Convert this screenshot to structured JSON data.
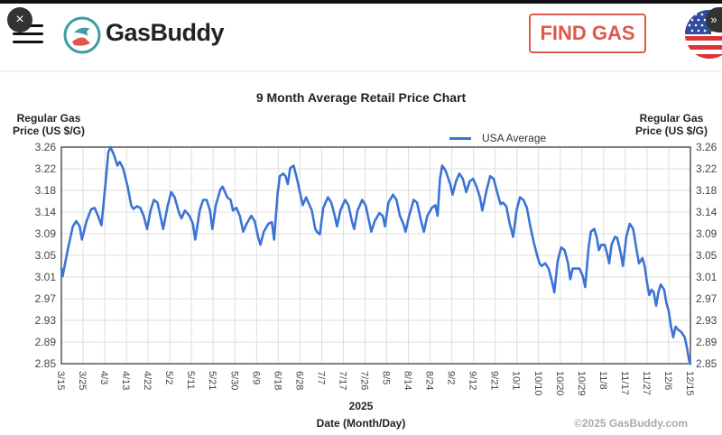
{
  "header": {
    "brand": "GasBuddy",
    "find_gas_label": "FIND GAS",
    "close_label": "×",
    "close_right_label": "»"
  },
  "chart_data": {
    "type": "line",
    "title": "9 Month Average Retail Price Chart",
    "ylabel_line1": "Regular Gas",
    "ylabel_line2": "Price (US $/G)",
    "xlabel_year": "2025",
    "xlabel": "Date (Month/Day)",
    "legend": "USA Average",
    "legend_position": "top-right",
    "grid": true,
    "ylim": [
      2.85,
      3.26
    ],
    "yticks": [
      "3.26",
      "3.22",
      "3.18",
      "3.14",
      "3.09",
      "3.05",
      "3.01",
      "2.97",
      "2.93",
      "2.89",
      "2.85"
    ],
    "xticks": [
      "3/15",
      "3/25",
      "4/3",
      "4/13",
      "4/22",
      "5/2",
      "5/11",
      "5/21",
      "5/30",
      "6/9",
      "6/18",
      "6/28",
      "7/7",
      "7/17",
      "7/26",
      "8/5",
      "8/14",
      "8/24",
      "9/2",
      "9/12",
      "9/21",
      "10/1",
      "10/10",
      "10/20",
      "10/29",
      "11/8",
      "11/17",
      "11/27",
      "12/6",
      "12/15"
    ],
    "x_days_range": [
      0,
      275
    ],
    "series": [
      {
        "name": "USA Average",
        "color": "#3b73d6",
        "points": [
          [
            0,
            3.03
          ],
          [
            0.5,
            3.015
          ],
          [
            3,
            3.07
          ],
          [
            5,
            3.11
          ],
          [
            6.5,
            3.12
          ],
          [
            8,
            3.11
          ],
          [
            9,
            3.085
          ],
          [
            11,
            3.12
          ],
          [
            13,
            3.142
          ],
          [
            14.5,
            3.145
          ],
          [
            16,
            3.13
          ],
          [
            17.5,
            3.112
          ],
          [
            19.5,
            3.2
          ],
          [
            20.5,
            3.25
          ],
          [
            21.5,
            3.26
          ],
          [
            23,
            3.245
          ],
          [
            24.5,
            3.225
          ],
          [
            25.5,
            3.232
          ],
          [
            27,
            3.22
          ],
          [
            29,
            3.185
          ],
          [
            30.5,
            3.15
          ],
          [
            31.5,
            3.143
          ],
          [
            33,
            3.148
          ],
          [
            34.5,
            3.145
          ],
          [
            36,
            3.13
          ],
          [
            37.5,
            3.105
          ],
          [
            39,
            3.14
          ],
          [
            40.5,
            3.16
          ],
          [
            42,
            3.155
          ],
          [
            43.5,
            3.125
          ],
          [
            44.5,
            3.105
          ],
          [
            46.5,
            3.15
          ],
          [
            48,
            3.175
          ],
          [
            49.5,
            3.165
          ],
          [
            51.5,
            3.135
          ],
          [
            52.5,
            3.125
          ],
          [
            54,
            3.14
          ],
          [
            56,
            3.13
          ],
          [
            57.5,
            3.115
          ],
          [
            58.5,
            3.085
          ],
          [
            60.5,
            3.14
          ],
          [
            62,
            3.16
          ],
          [
            63.5,
            3.16
          ],
          [
            65,
            3.14
          ],
          [
            66,
            3.105
          ],
          [
            67.5,
            3.15
          ],
          [
            69.5,
            3.18
          ],
          [
            70.5,
            3.185
          ],
          [
            72.5,
            3.165
          ],
          [
            74,
            3.16
          ],
          [
            75,
            3.14
          ],
          [
            76.5,
            3.145
          ],
          [
            78,
            3.13
          ],
          [
            79.5,
            3.1
          ],
          [
            81,
            3.115
          ],
          [
            83,
            3.13
          ],
          [
            84.5,
            3.12
          ],
          [
            86,
            3.09
          ],
          [
            87,
            3.075
          ],
          [
            88.5,
            3.1
          ],
          [
            90.5,
            3.115
          ],
          [
            92,
            3.118
          ],
          [
            93,
            3.085
          ],
          [
            94.5,
            3.17
          ],
          [
            95.5,
            3.205
          ],
          [
            97,
            3.21
          ],
          [
            98,
            3.205
          ],
          [
            99,
            3.19
          ],
          [
            100,
            3.22
          ],
          [
            101.5,
            3.225
          ],
          [
            103,
            3.2
          ],
          [
            104.5,
            3.17
          ],
          [
            105.5,
            3.15
          ],
          [
            107,
            3.165
          ],
          [
            108.5,
            3.15
          ],
          [
            109.5,
            3.14
          ],
          [
            111,
            3.105
          ],
          [
            112,
            3.098
          ],
          [
            113,
            3.095
          ],
          [
            114.5,
            3.145
          ],
          [
            116.5,
            3.165
          ],
          [
            118,
            3.155
          ],
          [
            119.5,
            3.13
          ],
          [
            120.5,
            3.11
          ],
          [
            122,
            3.14
          ],
          [
            124,
            3.16
          ],
          [
            125.5,
            3.15
          ],
          [
            127,
            3.12
          ],
          [
            128,
            3.105
          ],
          [
            129.5,
            3.14
          ],
          [
            131.5,
            3.16
          ],
          [
            133,
            3.15
          ],
          [
            134.5,
            3.12
          ],
          [
            135.5,
            3.1
          ],
          [
            137,
            3.12
          ],
          [
            139,
            3.135
          ],
          [
            140.5,
            3.13
          ],
          [
            141.5,
            3.11
          ],
          [
            143,
            3.155
          ],
          [
            145,
            3.17
          ],
          [
            146.5,
            3.16
          ],
          [
            148,
            3.13
          ],
          [
            149.5,
            3.115
          ],
          [
            150.5,
            3.1
          ],
          [
            152,
            3.13
          ],
          [
            154,
            3.16
          ],
          [
            155.5,
            3.155
          ],
          [
            157,
            3.125
          ],
          [
            158.5,
            3.1
          ],
          [
            160,
            3.13
          ],
          [
            162,
            3.145
          ],
          [
            163.5,
            3.15
          ],
          [
            164.5,
            3.13
          ],
          [
            165.5,
            3.2
          ],
          [
            166.5,
            3.225
          ],
          [
            168,
            3.215
          ],
          [
            170,
            3.19
          ],
          [
            171,
            3.17
          ],
          [
            172.5,
            3.195
          ],
          [
            174,
            3.21
          ],
          [
            175.5,
            3.2
          ],
          [
            177,
            3.175
          ],
          [
            178.5,
            3.195
          ],
          [
            180,
            3.2
          ],
          [
            181.5,
            3.185
          ],
          [
            183,
            3.165
          ],
          [
            184,
            3.14
          ],
          [
            186,
            3.18
          ],
          [
            187.5,
            3.205
          ],
          [
            189,
            3.2
          ],
          [
            190.5,
            3.175
          ],
          [
            192,
            3.152
          ],
          [
            193,
            3.155
          ],
          [
            194.5,
            3.148
          ],
          [
            196,
            3.115
          ],
          [
            197.5,
            3.09
          ],
          [
            199,
            3.14
          ],
          [
            200.5,
            3.165
          ],
          [
            202,
            3.16
          ],
          [
            203.5,
            3.145
          ],
          [
            205,
            3.11
          ],
          [
            206.5,
            3.08
          ],
          [
            208,
            3.055
          ],
          [
            209,
            3.04
          ],
          [
            210,
            3.035
          ],
          [
            211.5,
            3.04
          ],
          [
            213,
            3.03
          ],
          [
            214.5,
            3.005
          ],
          [
            215.5,
            2.985
          ],
          [
            217,
            3.045
          ],
          [
            218.5,
            3.07
          ],
          [
            220,
            3.065
          ],
          [
            221.5,
            3.04
          ],
          [
            222.5,
            3.01
          ],
          [
            223.5,
            3.03
          ],
          [
            225,
            3.03
          ],
          [
            226.5,
            3.03
          ],
          [
            228,
            3.015
          ],
          [
            229,
            2.995
          ],
          [
            230.5,
            3.07
          ],
          [
            231.5,
            3.1
          ],
          [
            233,
            3.105
          ],
          [
            234,
            3.09
          ],
          [
            235,
            3.065
          ],
          [
            236,
            3.075
          ],
          [
            237.5,
            3.075
          ],
          [
            238.5,
            3.06
          ],
          [
            239.5,
            3.04
          ],
          [
            240.5,
            3.075
          ],
          [
            242,
            3.09
          ],
          [
            243,
            3.088
          ],
          [
            244.5,
            3.06
          ],
          [
            245.5,
            3.035
          ],
          [
            247,
            3.09
          ],
          [
            248.5,
            3.115
          ],
          [
            250,
            3.105
          ],
          [
            251.5,
            3.065
          ],
          [
            252.5,
            3.04
          ],
          [
            254,
            3.05
          ],
          [
            255,
            3.035
          ],
          [
            256,
            3.005
          ],
          [
            257,
            2.98
          ],
          [
            258,
            2.99
          ],
          [
            259,
            2.985
          ],
          [
            260,
            2.96
          ],
          [
            261,
            2.985
          ],
          [
            262,
            3.0
          ],
          [
            263.5,
            2.99
          ],
          [
            264.5,
            2.965
          ],
          [
            265.5,
            2.95
          ],
          [
            266.5,
            2.92
          ],
          [
            267.5,
            2.9
          ],
          [
            268.5,
            2.92
          ],
          [
            269.5,
            2.915
          ],
          [
            271,
            2.91
          ],
          [
            272.5,
            2.9
          ],
          [
            273.5,
            2.88
          ],
          [
            274.5,
            2.855
          ],
          [
            275,
            2.85
          ]
        ]
      }
    ]
  },
  "copyright": "©2025 GasBuddy.com"
}
